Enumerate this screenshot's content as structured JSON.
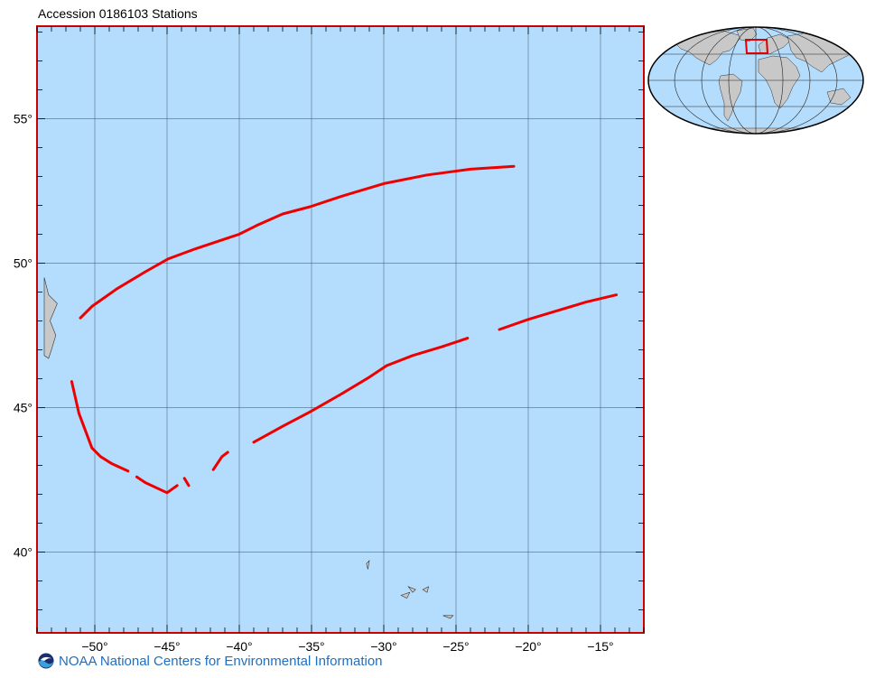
{
  "title": "Accession 0186103 Stations",
  "footer": {
    "text": "NOAA National Centers for Environmental Information",
    "logo_icon": "noaa-logo-icon"
  },
  "map": {
    "projection": "equirectangular",
    "lon_range": [
      -54,
      -12
    ],
    "lat_range": [
      37.2,
      58.2
    ],
    "lat_labels": [
      {
        "lat": 55,
        "text": "55°"
      },
      {
        "lat": 50,
        "text": "50°"
      },
      {
        "lat": 45,
        "text": "45°"
      },
      {
        "lat": 40,
        "text": "40°"
      }
    ],
    "lon_labels": [
      {
        "lon": -50,
        "text": "−50°"
      },
      {
        "lon": -45,
        "text": "−45°"
      },
      {
        "lon": -40,
        "text": "−40°"
      },
      {
        "lon": -35,
        "text": "−35°"
      },
      {
        "lon": -30,
        "text": "−30°"
      },
      {
        "lon": -25,
        "text": "−25°"
      },
      {
        "lon": -20,
        "text": "−20°"
      },
      {
        "lon": -15,
        "text": "−15°"
      }
    ],
    "colors": {
      "ocean": "#b4dcfc",
      "land": "#c8c8c8",
      "track": "#ee0000",
      "frame": "#cc0000",
      "grid": "#3a5068"
    },
    "tracks": [
      {
        "points": [
          [
            -51.0,
            48.1
          ],
          [
            -50.2,
            48.5
          ],
          [
            -48.5,
            49.1
          ],
          [
            -46.5,
            49.7
          ],
          [
            -44.9,
            50.15
          ],
          [
            -43.0,
            50.5
          ],
          [
            -41.2,
            50.8
          ],
          [
            -40.0,
            51.0
          ],
          [
            -38.8,
            51.3
          ],
          [
            -37.0,
            51.7
          ],
          [
            -35.1,
            51.95
          ],
          [
            -33.0,
            52.3
          ],
          [
            -30.0,
            52.75
          ],
          [
            -27.0,
            53.05
          ],
          [
            -24.0,
            53.25
          ],
          [
            -21.0,
            53.35
          ]
        ]
      },
      {
        "points": [
          [
            -51.6,
            45.9
          ],
          [
            -51.1,
            44.8
          ],
          [
            -50.2,
            43.6
          ],
          [
            -49.6,
            43.3
          ],
          [
            -48.8,
            43.05
          ],
          [
            -47.7,
            42.8
          ]
        ]
      },
      {
        "points": [
          [
            -47.1,
            42.6
          ],
          [
            -46.5,
            42.4
          ],
          [
            -45.0,
            42.05
          ],
          [
            -44.3,
            42.3
          ]
        ]
      },
      {
        "points": [
          [
            -43.8,
            42.55
          ],
          [
            -43.5,
            42.3
          ]
        ]
      },
      {
        "points": [
          [
            -41.8,
            42.85
          ],
          [
            -41.2,
            43.3
          ],
          [
            -40.8,
            43.45
          ]
        ]
      },
      {
        "points": [
          [
            -39.0,
            43.8
          ],
          [
            -37.0,
            44.35
          ],
          [
            -35.1,
            44.85
          ],
          [
            -33.0,
            45.45
          ],
          [
            -31.0,
            46.05
          ],
          [
            -29.8,
            46.45
          ],
          [
            -28.0,
            46.8
          ],
          [
            -26.0,
            47.1
          ],
          [
            -24.2,
            47.4
          ]
        ]
      },
      {
        "points": [
          [
            -22.0,
            47.7
          ],
          [
            -20.0,
            48.05
          ],
          [
            -18.0,
            48.35
          ],
          [
            -16.0,
            48.65
          ],
          [
            -13.9,
            48.9
          ]
        ]
      }
    ],
    "islands": [
      [
        [
          -31.2,
          39.6
        ],
        [
          -31.0,
          39.7
        ],
        [
          -31.1,
          39.4
        ]
      ],
      [
        [
          -28.8,
          38.5
        ],
        [
          -28.2,
          38.6
        ],
        [
          -28.4,
          38.4
        ]
      ],
      [
        [
          -28.3,
          38.8
        ],
        [
          -27.8,
          38.7
        ],
        [
          -28.0,
          38.6
        ]
      ],
      [
        [
          -27.3,
          38.7
        ],
        [
          -26.9,
          38.8
        ],
        [
          -27.0,
          38.6
        ]
      ],
      [
        [
          -25.9,
          37.8
        ],
        [
          -25.2,
          37.8
        ],
        [
          -25.4,
          37.7
        ]
      ]
    ],
    "coast": [
      [
        -53.5,
        49.5
      ],
      [
        -53.2,
        48.9
      ],
      [
        -52.6,
        48.6
      ],
      [
        -53.1,
        48.0
      ],
      [
        -52.7,
        47.5
      ],
      [
        -53.0,
        47.0
      ],
      [
        -53.2,
        46.7
      ],
      [
        -53.5,
        46.8
      ],
      [
        -53.5,
        49.5
      ]
    ]
  },
  "inset": {
    "label": "world-overview",
    "colors": {
      "ocean": "#b4dcfc",
      "land": "#c8c8c8",
      "box": "#dd0000"
    }
  }
}
